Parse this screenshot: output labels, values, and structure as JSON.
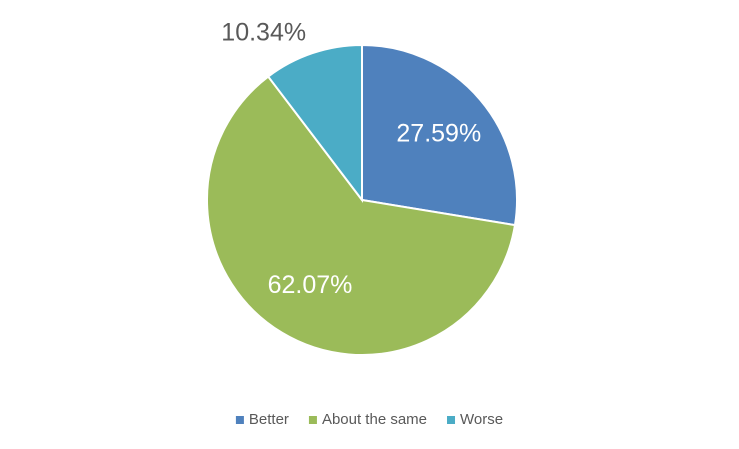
{
  "chart_data": {
    "type": "pie",
    "categories": [
      "Better",
      "About the same",
      "Worse"
    ],
    "values": [
      27.59,
      62.07,
      10.34
    ],
    "value_labels": [
      "27.59%",
      "62.07%",
      "10.34%"
    ],
    "colors": [
      "#4f81bd",
      "#9bbb59",
      "#4bacc6"
    ],
    "legend": "bottom"
  }
}
